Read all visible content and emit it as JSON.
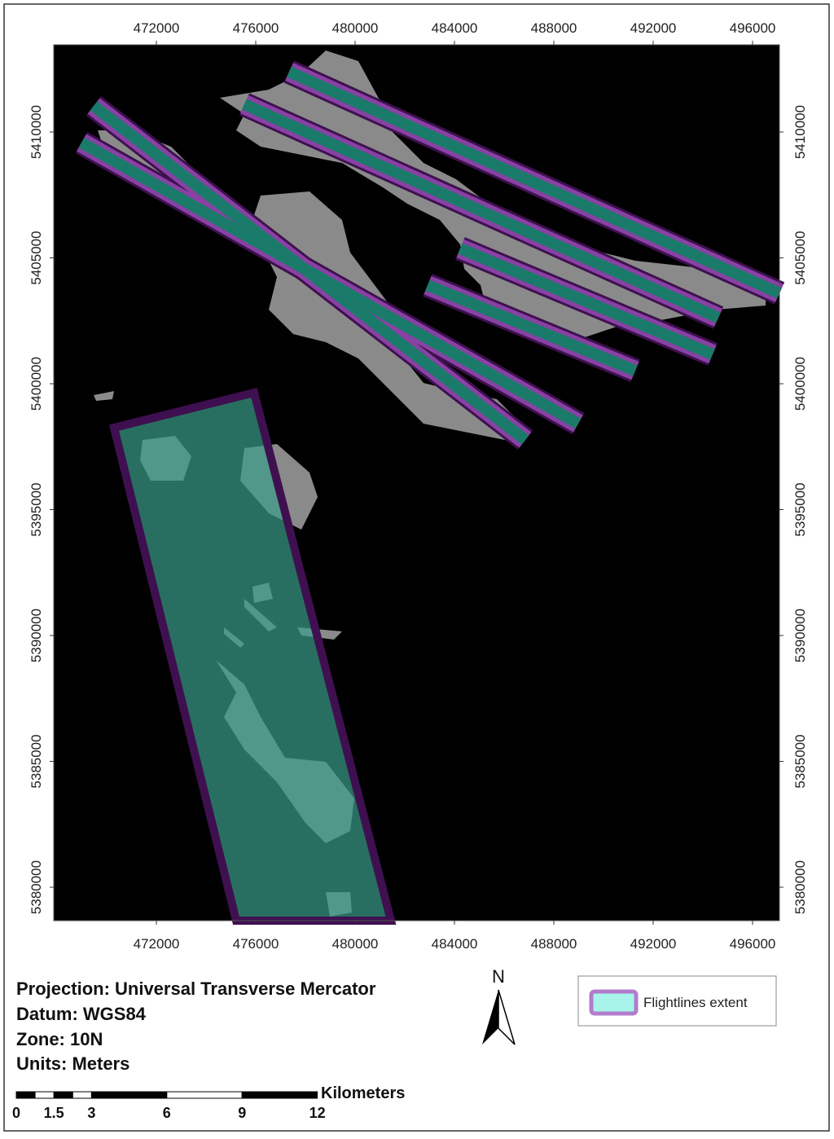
{
  "map": {
    "xlim": [
      467869,
      497082
    ],
    "ylim": [
      5378673,
      5413463
    ],
    "xticks": [
      472000,
      476000,
      480000,
      484000,
      488000,
      492000,
      496000
    ],
    "yticks": [
      5380000,
      5385000,
      5390000,
      5395000,
      5400000,
      5405000,
      5410000
    ]
  },
  "info": {
    "projection": "Projection: Universal Transverse Mercator",
    "datum": "Datum: WGS84",
    "zone": "Zone: 10N",
    "units": "Units: Meters"
  },
  "legend": {
    "label": "Flightlines extent"
  },
  "north": "N",
  "scale_bar": {
    "unit": "Kilometers",
    "ticks": [
      0,
      1.5,
      3,
      6,
      9,
      12
    ]
  }
}
